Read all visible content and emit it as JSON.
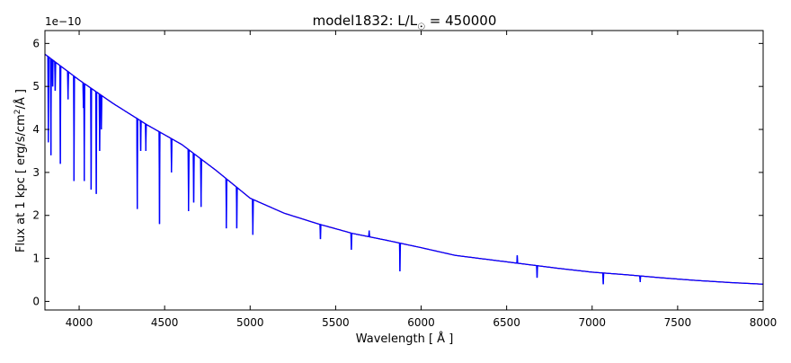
{
  "chart_data": {
    "type": "line",
    "title": "model1832: L/L",
    "title_sub": "☉",
    "title_tail": " = 450000",
    "xlabel": "Wavelength [ Å ]",
    "ylabel_main": "Flux at 1 kpc [ erg/s/cm",
    "ylabel_sup": "2",
    "ylabel_tail": "/Å ]",
    "y_offset_label": "1e−10",
    "xlim": [
      3800,
      8000
    ],
    "ylim": [
      -0.2,
      6.3
    ],
    "y_scale": "1e-10",
    "xticks": [
      4000,
      4500,
      5000,
      5500,
      6000,
      6500,
      7000,
      7500,
      8000
    ],
    "xtick_labels": [
      "4000",
      "4500",
      "5000",
      "5500",
      "6000",
      "6500",
      "7000",
      "7500",
      "8000"
    ],
    "yticks": [
      0,
      1,
      2,
      3,
      4,
      5,
      6
    ],
    "ytick_labels": [
      "0",
      "1",
      "2",
      "3",
      "4",
      "5",
      "6"
    ],
    "grid": false,
    "colors": {
      "continuum": "#ff0000",
      "spectrum": "#0000ff"
    },
    "series": [
      {
        "role": "continuum",
        "x": [
          3800,
          4000,
          4200,
          4400,
          4600,
          4800,
          5000,
          5200,
          5400,
          5600,
          5800,
          6000,
          6200,
          6400,
          6600,
          6800,
          7000,
          7200,
          7400,
          7600,
          7800,
          8000
        ],
        "y": [
          5.75,
          5.15,
          4.6,
          4.1,
          3.65,
          3.05,
          2.4,
          2.05,
          1.8,
          1.58,
          1.42,
          1.25,
          1.07,
          0.97,
          0.87,
          0.77,
          0.68,
          0.62,
          0.55,
          0.49,
          0.44,
          0.4
        ]
      },
      {
        "role": "spectrum",
        "absorption_lines": [
          [
            3820,
            3.7
          ],
          [
            3835,
            3.4
          ],
          [
            3845,
            5.0
          ],
          [
            3860,
            4.9
          ],
          [
            3890,
            3.2
          ],
          [
            3935,
            4.7
          ],
          [
            3970,
            2.8
          ],
          [
            4025,
            4.5
          ],
          [
            4030,
            2.8
          ],
          [
            4070,
            2.6
          ],
          [
            4100,
            2.5
          ],
          [
            4120,
            3.5
          ],
          [
            4130,
            4.0
          ],
          [
            4340,
            2.15
          ],
          [
            4360,
            3.5
          ],
          [
            4390,
            3.5
          ],
          [
            4470,
            1.8
          ],
          [
            4540,
            3.0
          ],
          [
            4640,
            2.1
          ],
          [
            4670,
            2.3
          ],
          [
            4713,
            2.2
          ],
          [
            4861,
            1.7
          ],
          [
            4922,
            1.7
          ],
          [
            5016,
            1.55
          ],
          [
            5411,
            1.45
          ],
          [
            5592,
            1.2
          ],
          [
            5876,
            0.7
          ],
          [
            6678,
            0.55
          ],
          [
            7065,
            0.4
          ],
          [
            7281,
            0.45
          ]
        ],
        "emission_lines": [
          [
            5696,
            1.65
          ],
          [
            6562,
            1.07
          ]
        ]
      }
    ]
  }
}
